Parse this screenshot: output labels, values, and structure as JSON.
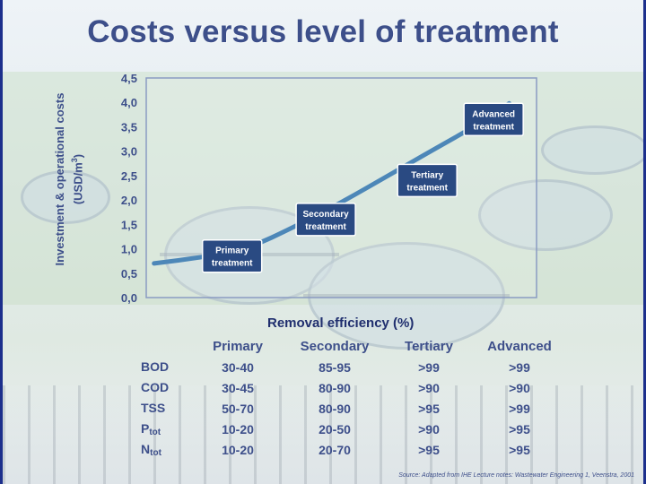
{
  "title": "Costs versus level of treatment",
  "colors": {
    "title": "#3d4f8a",
    "curve": "#4d87b8",
    "label_box": "#2a4a82",
    "border": "#1c2f8c"
  },
  "chart_data": {
    "type": "line",
    "xlabel": "Removal efficiency (%)",
    "ylabel_line1": "Investment & operational costs",
    "ylabel_line2_main": "(USD/m",
    "ylabel_line2_sup": "3",
    "ylabel_line2_end": ")",
    "ylim": [
      0,
      4.5
    ],
    "yticks": [
      "0,0",
      "0,5",
      "1,0",
      "1,5",
      "2,0",
      "2,5",
      "3,0",
      "3,5",
      "4,0",
      "4,5"
    ],
    "grid": false,
    "series": [
      {
        "values": [
          0.7,
          0.82,
          1.0,
          1.45,
          1.95,
          2.5,
          3.05,
          3.5,
          3.98
        ],
        "x": [
          0.02,
          0.14,
          0.26,
          0.38,
          0.5,
          0.62,
          0.74,
          0.84,
          0.93
        ]
      }
    ],
    "annotations": [
      {
        "line1": "Primary",
        "line2": "treatment",
        "x": 0.22,
        "y": 0.85
      },
      {
        "line1": "Secondary",
        "line2": "treatment",
        "x": 0.46,
        "y": 1.6
      },
      {
        "line1": "Tertiary",
        "line2": "treatment",
        "x": 0.72,
        "y": 2.4
      },
      {
        "line1": "Advanced",
        "line2": "treatment",
        "x": 0.89,
        "y": 3.65
      }
    ]
  },
  "table": {
    "headers": [
      "Primary",
      "Secondary",
      "Tertiary",
      "Advanced"
    ],
    "rows": [
      {
        "param": "BOD",
        "sub": "",
        "values": [
          "30-40",
          "85-95",
          ">99",
          ">99"
        ]
      },
      {
        "param": "COD",
        "sub": "",
        "values": [
          "30-45",
          "80-90",
          ">90",
          ">90"
        ]
      },
      {
        "param": "TSS",
        "sub": "",
        "values": [
          "50-70",
          "80-90",
          ">95",
          ">99"
        ]
      },
      {
        "param": "P",
        "sub": "tot",
        "values": [
          "10-20",
          "20-50",
          ">90",
          ">95"
        ]
      },
      {
        "param": "N",
        "sub": "tot",
        "values": [
          "10-20",
          "20-70",
          ">95",
          ">95"
        ]
      }
    ]
  },
  "source": "Source: Adapted from IHE Lecture notes: Wastewater Engineering 1, Veenstra, 2001"
}
